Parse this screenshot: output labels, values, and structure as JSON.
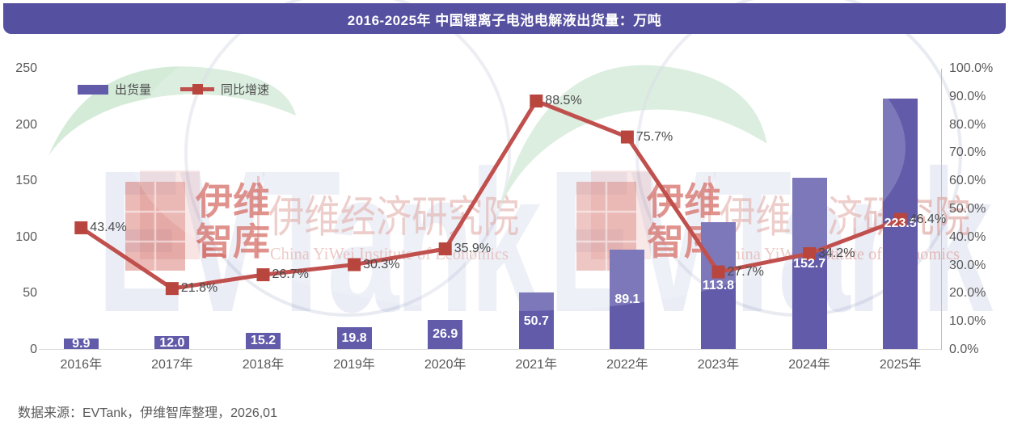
{
  "title": "2016-2025年 中国锂离子电池电解液出货量：万吨",
  "legend": {
    "bar_label": "出货量",
    "line_label": "同比增速"
  },
  "source_note": "数据来源：EVTank，伊维智库整理，2026,01",
  "watermark": {
    "logo_text": "EVTank",
    "cn_line1": "伊维",
    "cn_line2": "智库",
    "institute_cn": "伊维经济研究院",
    "institute_en": "China YiWei Institute of Economics"
  },
  "colors": {
    "title_bg": "#55509F",
    "bar": "#615BAA",
    "line": "#C0504D",
    "marker": "#B8453E",
    "tick_text": "#595959",
    "data_label": "#4A4A4A",
    "baseline": "#DCDCDC",
    "axis_line": "#BFBFBF",
    "wm_green": "#CFE9D4",
    "wm_blue": "#6272B8",
    "wm_red": "#CF5A52",
    "wm_lightred": "#D9948D",
    "wm_arc": "#D3D7E6"
  },
  "chart_data": {
    "type": "bar+line combo",
    "title": "2016-2025年 中国锂离子电池电解液出货量：万吨",
    "categories": [
      "2016年",
      "2017年",
      "2018年",
      "2019年",
      "2020年",
      "2021年",
      "2022年",
      "2023年",
      "2024年",
      "2025年"
    ],
    "series": [
      {
        "name": "出货量",
        "type": "bar",
        "axis": "left",
        "unit": "万吨",
        "values": [
          9.9,
          12.0,
          15.2,
          19.8,
          26.9,
          50.7,
          89.1,
          113.8,
          152.7,
          223.5
        ]
      },
      {
        "name": "同比增速",
        "type": "line",
        "axis": "right",
        "unit": "%",
        "values": [
          43.4,
          21.8,
          26.7,
          30.3,
          35.9,
          88.5,
          75.7,
          27.7,
          34.2,
          46.4
        ]
      }
    ],
    "left_axis": {
      "min": 0,
      "max": 250,
      "tick_values": [
        250,
        200,
        150,
        100,
        50,
        0
      ],
      "tick_labels": [
        "250",
        "200",
        "150",
        "100",
        "50",
        "0"
      ]
    },
    "right_axis": {
      "min": 0,
      "max": 100,
      "tick_values": [
        100,
        90,
        80,
        70,
        60,
        50,
        40,
        30,
        20,
        10,
        0
      ],
      "tick_labels": [
        "100.0%",
        "90.0%",
        "80.0%",
        "70.0%",
        "60.0%",
        "50.0%",
        "40.0%",
        "30.0%",
        "20.0%",
        "10.0%",
        "0.0%"
      ]
    },
    "grid": false,
    "legend_position": "top-left",
    "data_labels": "bar values centered inside bars; percent labels right of line markers"
  }
}
